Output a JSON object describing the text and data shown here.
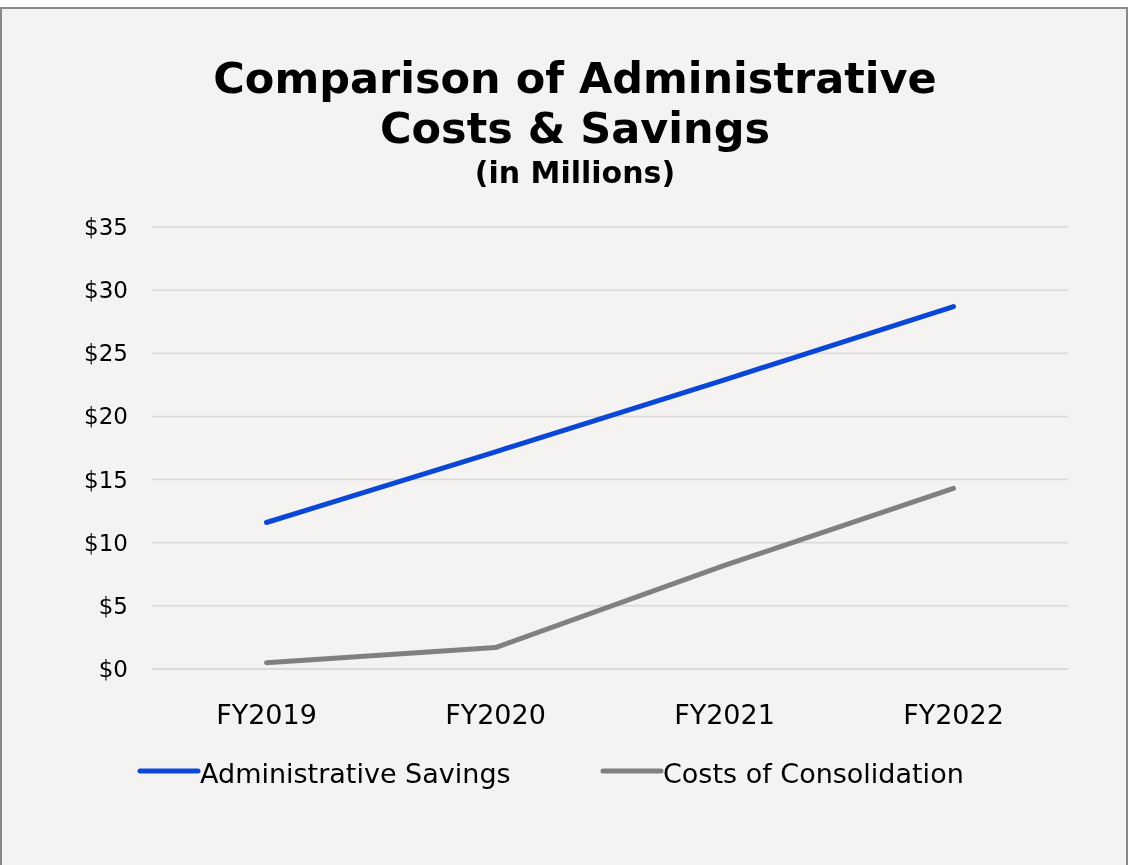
{
  "chart_data": {
    "type": "line",
    "title": "Comparison of Administrative Costs & Savings",
    "subtitle": "(in Millions)",
    "categories": [
      "FY2019",
      "FY2020",
      "FY2021",
      "FY2022"
    ],
    "series": [
      {
        "name": "Administrative Savings",
        "color": "#0a47d6",
        "values": [
          11.6,
          17.2,
          22.9,
          28.7
        ]
      },
      {
        "name": "Costs of Consolidation",
        "color": "#808080",
        "values": [
          0.5,
          1.7,
          8.2,
          14.3
        ]
      }
    ],
    "ylim": [
      0,
      35
    ],
    "yticks": [
      {
        "value": 0,
        "label": "$0"
      },
      {
        "value": 5,
        "label": "$5"
      },
      {
        "value": 10,
        "label": "$10"
      },
      {
        "value": 15,
        "label": "$15"
      },
      {
        "value": 20,
        "label": "$20"
      },
      {
        "value": 25,
        "label": "$25"
      },
      {
        "value": 30,
        "label": "$30"
      },
      {
        "value": 35,
        "label": "$35"
      }
    ],
    "grid": "y",
    "legend": "bottom"
  }
}
